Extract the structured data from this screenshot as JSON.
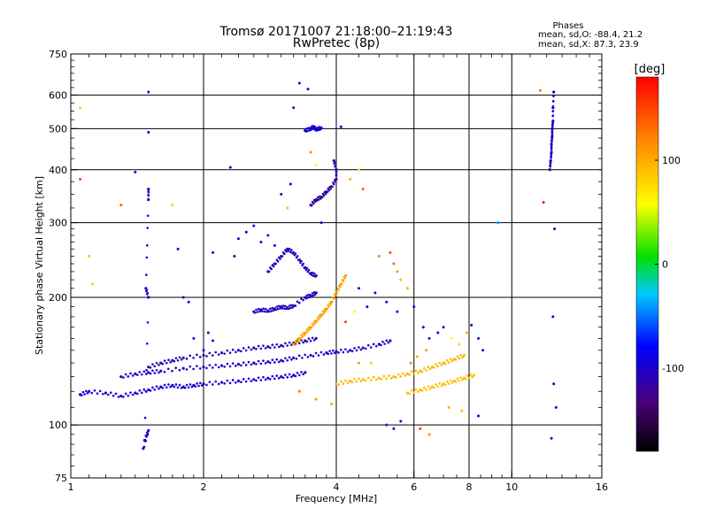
{
  "chart_data": {
    "type": "scatter",
    "title": "Tromsø 20171007 21:18:00–21:19:43",
    "subtitle": "RwPretec (8p)",
    "phase_box": {
      "header": "Phases",
      "line_o": "mean, sd,O: -88.4, 21.2",
      "line_x": "mean, sd,X:  87.3, 23.9"
    },
    "xlabel": "Frequency [MHz]",
    "ylabel": "Stationary phase Virtual Height [km]",
    "x_scale": "log",
    "y_scale": "log",
    "xlim": [
      1,
      16
    ],
    "ylim": [
      75,
      750
    ],
    "x_ticks": [
      1,
      2,
      4,
      6,
      8,
      10,
      16
    ],
    "x_tick_labels": [
      "1",
      "2",
      "4",
      "6",
      "8",
      "10",
      "16"
    ],
    "x_major_grid": [
      2,
      4,
      6,
      8,
      10
    ],
    "y_ticks": [
      75,
      100,
      200,
      300,
      400,
      500,
      600,
      750
    ],
    "y_tick_labels": [
      "75",
      "100",
      "200",
      "300",
      "400",
      "500",
      "600",
      "750"
    ],
    "y_major_grid": [
      100,
      200,
      300,
      400,
      500,
      600
    ],
    "grid": true,
    "colorbar": {
      "label": "[deg]",
      "range": [
        -180,
        180
      ],
      "ticks": [
        100,
        0,
        -100
      ],
      "tick_labels": [
        "100",
        "0",
        "-100"
      ],
      "colormap": "rainbow (black-purple-blue-cyan-green-yellow-red)"
    },
    "traces": [
      {
        "name": "",
        "phase": -95,
        "points": [
          [
            1.05,
            118
          ],
          [
            1.1,
            120
          ],
          [
            1.2,
            119
          ],
          [
            1.3,
            117
          ],
          [
            1.4,
            119
          ],
          [
            1.5,
            121
          ],
          [
            1.6,
            123
          ],
          [
            1.7,
            124
          ],
          [
            1.8,
            123
          ],
          [
            1.9,
            124
          ],
          [
            2.0,
            125
          ],
          [
            2.2,
            126
          ],
          [
            2.4,
            127
          ],
          [
            2.6,
            128
          ],
          [
            2.8,
            129
          ],
          [
            3.0,
            130
          ],
          [
            3.2,
            131
          ],
          [
            3.4,
            133
          ]
        ]
      },
      {
        "name": "",
        "phase": -100,
        "points": [
          [
            1.3,
            130
          ],
          [
            1.4,
            132
          ],
          [
            1.5,
            133
          ],
          [
            1.6,
            134
          ],
          [
            1.8,
            136
          ],
          [
            2.0,
            137
          ],
          [
            2.2,
            138
          ],
          [
            2.4,
            139
          ],
          [
            2.6,
            140
          ],
          [
            2.8,
            141
          ],
          [
            3.0,
            142
          ],
          [
            3.2,
            144
          ],
          [
            3.5,
            146
          ],
          [
            3.8,
            148
          ],
          [
            4.0,
            149
          ],
          [
            4.3,
            150
          ],
          [
            4.6,
            152
          ],
          [
            5.0,
            155
          ],
          [
            5.3,
            158
          ]
        ]
      },
      {
        "name": "",
        "phase": -110,
        "points": [
          [
            1.5,
            137
          ],
          [
            1.6,
            140
          ],
          [
            1.7,
            142
          ],
          [
            1.8,
            144
          ],
          [
            2.0,
            146
          ],
          [
            2.2,
            148
          ],
          [
            2.4,
            150
          ],
          [
            2.6,
            152
          ],
          [
            2.8,
            153
          ],
          [
            3.0,
            154
          ],
          [
            3.2,
            156
          ],
          [
            3.4,
            158
          ],
          [
            3.6,
            160
          ]
        ]
      },
      {
        "name": "",
        "phase": -105,
        "points": [
          [
            2.8,
            230
          ],
          [
            2.9,
            240
          ],
          [
            3.0,
            250
          ],
          [
            3.1,
            260
          ],
          [
            3.2,
            255
          ],
          [
            3.3,
            245
          ],
          [
            3.4,
            235
          ],
          [
            3.5,
            228
          ],
          [
            3.6,
            225
          ]
        ]
      },
      {
        "name": "",
        "phase": -115,
        "points": [
          [
            3.5,
            330
          ],
          [
            3.6,
            340
          ],
          [
            3.7,
            345
          ],
          [
            3.8,
            355
          ],
          [
            3.9,
            365
          ],
          [
            4.0,
            380
          ],
          [
            4.0,
            400
          ],
          [
            3.95,
            420
          ]
        ]
      },
      {
        "name": "",
        "phase": -95,
        "points": [
          [
            3.4,
            495
          ],
          [
            3.5,
            500
          ],
          [
            3.55,
            505
          ],
          [
            3.6,
            498
          ],
          [
            3.7,
            502
          ]
        ]
      },
      {
        "name": "",
        "phase": 105,
        "points": [
          [
            3.2,
            155
          ],
          [
            3.3,
            160
          ],
          [
            3.4,
            165
          ],
          [
            3.5,
            170
          ],
          [
            3.6,
            176
          ],
          [
            3.7,
            182
          ],
          [
            3.8,
            188
          ],
          [
            3.9,
            195
          ],
          [
            4.0,
            205
          ],
          [
            4.1,
            215
          ],
          [
            4.2,
            225
          ]
        ]
      },
      {
        "name": "",
        "phase": 95,
        "points": [
          [
            4.0,
            125
          ],
          [
            4.3,
            127
          ],
          [
            4.6,
            128
          ],
          [
            5.0,
            129
          ],
          [
            5.4,
            130
          ],
          [
            5.8,
            132
          ],
          [
            6.2,
            134
          ],
          [
            6.6,
            137
          ],
          [
            7.0,
            140
          ],
          [
            7.4,
            143
          ],
          [
            7.8,
            146
          ]
        ]
      },
      {
        "name": "",
        "phase": 90,
        "points": [
          [
            5.8,
            119
          ],
          [
            6.2,
            121
          ],
          [
            6.6,
            123
          ],
          [
            7.0,
            125
          ],
          [
            7.4,
            127
          ],
          [
            7.8,
            129
          ],
          [
            8.2,
            131
          ]
        ]
      },
      {
        "name": "",
        "phase": -100,
        "points": [
          [
            12.2,
            400
          ],
          [
            12.25,
            420
          ],
          [
            12.3,
            440
          ],
          [
            12.3,
            460
          ],
          [
            12.35,
            480
          ],
          [
            12.35,
            500
          ],
          [
            12.4,
            520
          ],
          [
            12.4,
            560
          ],
          [
            12.45,
            610
          ]
        ]
      },
      {
        "name": "",
        "phase": -100,
        "points": [
          [
            1.5,
            360
          ],
          [
            1.5,
            340
          ],
          [
            1.48,
            210
          ],
          [
            1.5,
            200
          ],
          [
            1.47,
            92
          ],
          [
            1.5,
            97
          ],
          [
            1.46,
            88
          ]
        ]
      },
      {
        "name": "",
        "phase": -105,
        "points": [
          [
            2.6,
            185
          ],
          [
            2.7,
            187
          ],
          [
            2.8,
            186
          ],
          [
            2.9,
            188
          ],
          [
            3.0,
            190
          ],
          [
            3.1,
            189
          ],
          [
            3.2,
            191
          ],
          [
            3.4,
            200
          ],
          [
            3.5,
            202
          ],
          [
            3.6,
            205
          ]
        ]
      }
    ],
    "scatter": [
      [
        1.05,
        560,
        40
      ],
      [
        1.05,
        380,
        150
      ],
      [
        1.1,
        250,
        90
      ],
      [
        1.12,
        215,
        80
      ],
      [
        1.3,
        330,
        140
      ],
      [
        1.4,
        395,
        -110
      ],
      [
        1.5,
        610,
        -100
      ],
      [
        1.5,
        490,
        -95
      ],
      [
        1.7,
        330,
        40
      ],
      [
        1.75,
        260,
        -100
      ],
      [
        1.8,
        200,
        -110
      ],
      [
        1.85,
        195,
        -100
      ],
      [
        1.9,
        160,
        -90
      ],
      [
        2.0,
        150,
        -100
      ],
      [
        2.05,
        165,
        -110
      ],
      [
        2.1,
        158,
        -95
      ],
      [
        2.1,
        255,
        -90
      ],
      [
        2.3,
        405,
        -100
      ],
      [
        2.35,
        250,
        -100
      ],
      [
        2.4,
        275,
        -90
      ],
      [
        2.5,
        285,
        -95
      ],
      [
        2.6,
        295,
        -100
      ],
      [
        2.7,
        270,
        -90
      ],
      [
        2.8,
        280,
        -100
      ],
      [
        2.9,
        265,
        -95
      ],
      [
        3.0,
        350,
        -100
      ],
      [
        3.1,
        325,
        90
      ],
      [
        3.15,
        370,
        -90
      ],
      [
        3.2,
        560,
        -100
      ],
      [
        3.3,
        640,
        -110
      ],
      [
        3.45,
        620,
        -95
      ],
      [
        3.5,
        440,
        120
      ],
      [
        3.6,
        410,
        60
      ],
      [
        3.7,
        300,
        -90
      ],
      [
        4.1,
        505,
        -100
      ],
      [
        4.3,
        380,
        100
      ],
      [
        4.5,
        400,
        70
      ],
      [
        4.6,
        360,
        140
      ],
      [
        5.0,
        250,
        120
      ],
      [
        5.3,
        255,
        150
      ],
      [
        5.4,
        240,
        130
      ],
      [
        5.5,
        230,
        110
      ],
      [
        5.6,
        220,
        90
      ],
      [
        5.8,
        210,
        100
      ],
      [
        6.0,
        190,
        -80
      ],
      [
        6.3,
        170,
        -95
      ],
      [
        6.5,
        160,
        -100
      ],
      [
        6.8,
        165,
        -90
      ],
      [
        7.0,
        170,
        -95
      ],
      [
        7.3,
        160,
        60
      ],
      [
        7.6,
        155,
        80
      ],
      [
        7.9,
        165,
        100
      ],
      [
        8.1,
        172,
        -100
      ],
      [
        8.4,
        160,
        -110
      ],
      [
        8.6,
        150,
        -100
      ],
      [
        9.3,
        300,
        -40
      ],
      [
        5.2,
        100,
        -100
      ],
      [
        5.4,
        98,
        -95
      ],
      [
        5.6,
        102,
        -90
      ],
      [
        6.2,
        98,
        150
      ],
      [
        6.5,
        95,
        120
      ],
      [
        7.2,
        110,
        100
      ],
      [
        7.7,
        108,
        90
      ],
      [
        8.4,
        105,
        -90
      ],
      [
        11.6,
        615,
        130
      ],
      [
        11.8,
        335,
        170
      ],
      [
        12.5,
        290,
        -100
      ],
      [
        12.6,
        110,
        -110
      ],
      [
        12.3,
        93,
        -100
      ],
      [
        12.4,
        180,
        -100
      ],
      [
        12.45,
        125,
        -90
      ],
      [
        4.2,
        175,
        150
      ],
      [
        4.4,
        185,
        60
      ],
      [
        4.5,
        140,
        110
      ],
      [
        4.8,
        140,
        80
      ],
      [
        3.3,
        120,
        130
      ],
      [
        3.6,
        115,
        110
      ],
      [
        3.9,
        112,
        100
      ],
      [
        5.9,
        140,
        120
      ],
      [
        6.1,
        145,
        100
      ],
      [
        6.4,
        150,
        110
      ],
      [
        4.9,
        205,
        -95
      ],
      [
        4.7,
        190,
        -100
      ],
      [
        4.5,
        210,
        -90
      ],
      [
        5.2,
        195,
        -105
      ],
      [
        5.5,
        185,
        -100
      ]
    ]
  }
}
